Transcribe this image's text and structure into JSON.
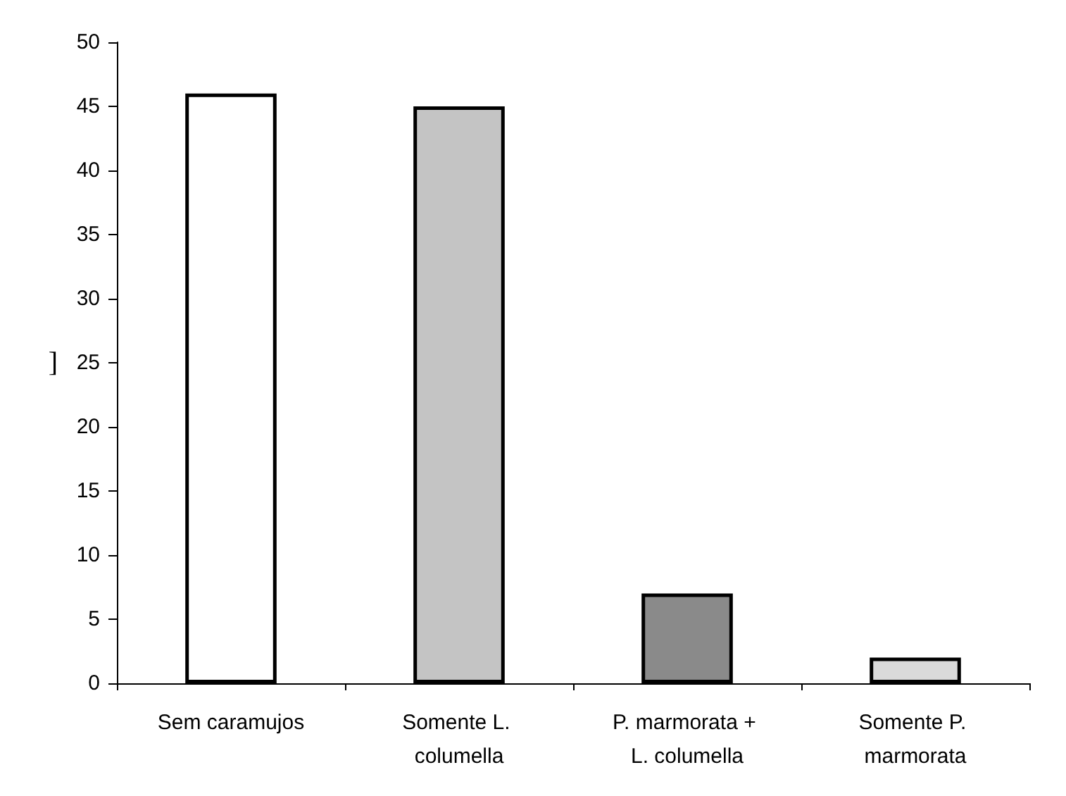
{
  "chart_data": {
    "type": "bar",
    "ylabel": "]",
    "categories": [
      "Sem caramujos",
      "Somente L. columella",
      "P. marmorata + L. columella",
      "Somente P. marmorata"
    ],
    "values": [
      46,
      45,
      7,
      2
    ],
    "colors": [
      "#ffffff",
      "#c4c4c4",
      "#8a8a8a",
      "#dadada"
    ],
    "ylim": [
      0,
      50
    ],
    "yticks": [
      0,
      5,
      10,
      15,
      20,
      25,
      30,
      35,
      40,
      45,
      50
    ],
    "grid": false
  }
}
